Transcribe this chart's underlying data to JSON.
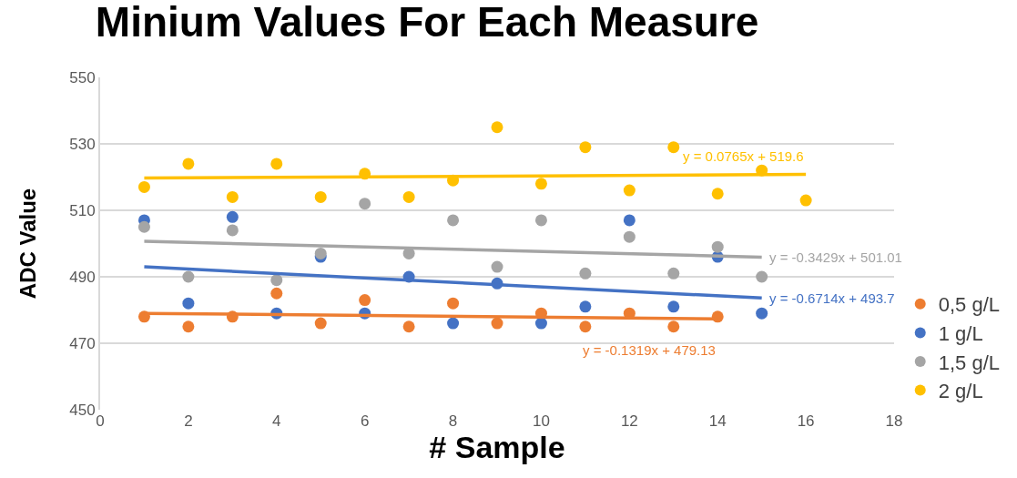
{
  "chart_data": {
    "type": "scatter",
    "title": "Minium Values For Each Measure",
    "xlabel": "# Sample",
    "ylabel": "ADC Value",
    "xlim": [
      0,
      18
    ],
    "xticks": [
      0,
      2,
      4,
      6,
      8,
      10,
      12,
      14,
      16,
      18
    ],
    "ylim": [
      450,
      550
    ],
    "yticks": [
      450,
      470,
      490,
      510,
      530,
      550
    ],
    "grid": "y",
    "legend": "bottom right",
    "series": [
      {
        "name": "0,5 g/L",
        "color": "#ed7d31",
        "marker": "circle",
        "x": [
          1,
          2,
          3,
          4,
          5,
          6,
          7,
          8,
          9,
          10,
          11,
          12,
          13,
          14
        ],
        "values": [
          478,
          475,
          478,
          485,
          476,
          483,
          475,
          482,
          476,
          479,
          475,
          479,
          475,
          478
        ]
      },
      {
        "name": "1 g/L",
        "color": "#4472c4",
        "marker": "circle",
        "x": [
          1,
          2,
          3,
          4,
          5,
          6,
          7,
          8,
          9,
          10,
          11,
          12,
          13,
          14,
          15
        ],
        "values": [
          507,
          482,
          508,
          479,
          496,
          479,
          490,
          476,
          488,
          476,
          481,
          507,
          481,
          496,
          479
        ]
      },
      {
        "name": "1,5 g/L",
        "color": "#a5a5a5",
        "marker": "circle",
        "x": [
          1,
          2,
          3,
          4,
          5,
          6,
          7,
          8,
          9,
          10,
          11,
          12,
          13,
          14,
          15
        ],
        "values": [
          505,
          490,
          504,
          489,
          497,
          512,
          497,
          507,
          493,
          507,
          491,
          502,
          491,
          499,
          490
        ]
      },
      {
        "name": "2 g/L",
        "color": "#ffc000",
        "marker": "circle",
        "x": [
          1,
          2,
          3,
          4,
          5,
          6,
          7,
          8,
          9,
          10,
          11,
          12,
          13,
          14,
          15,
          16
        ],
        "values": [
          517,
          524,
          514,
          524,
          514,
          521,
          514,
          519,
          535,
          518,
          529,
          516,
          529,
          515,
          522,
          513
        ]
      },
      {
        "type": "line",
        "color": "#ed7d31",
        "x": [
          1,
          14
        ],
        "values": [
          479.0,
          477.3
        ]
      },
      {
        "type": "line",
        "color": "#4472c4",
        "x": [
          1,
          15
        ],
        "values": [
          493.0,
          483.6
        ]
      },
      {
        "type": "line",
        "color": "#a5a5a5",
        "x": [
          1,
          15
        ],
        "values": [
          500.7,
          495.9
        ]
      },
      {
        "type": "line",
        "color": "#ffc000",
        "x": [
          1,
          16
        ],
        "values": [
          519.7,
          520.8
        ]
      }
    ],
    "annotations": [
      "y = -0.1319x + 479.13",
      "y = -0.6714x + 493.7",
      "y = -0.3429x + 501.01",
      "y = 0.0765x + 519.6"
    ]
  }
}
